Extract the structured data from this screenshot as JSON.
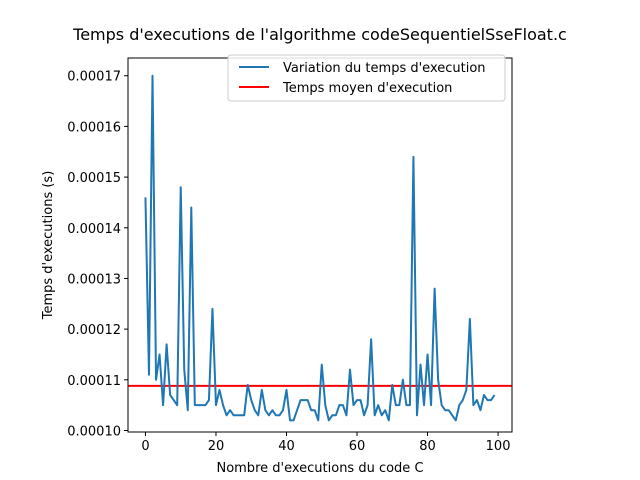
{
  "chart_data": {
    "type": "line",
    "title": "Temps d'executions de l'algorithme codeSequentielSseFloat.c",
    "xlabel": "Nombre d'executions du code C",
    "ylabel": "Temps d'executions (s)",
    "xlim": [
      -4.95,
      103.95
    ],
    "ylim": [
      9.97e-05,
      0.0001735
    ],
    "xticks": [
      0,
      20,
      40,
      60,
      80,
      100
    ],
    "xtick_labels": [
      "0",
      "20",
      "40",
      "60",
      "80",
      "100"
    ],
    "yticks": [
      0.0001,
      0.00011,
      0.00012,
      0.00013,
      0.00014,
      0.00015,
      0.00016,
      0.00017
    ],
    "ytick_labels": [
      "0.00010",
      "0.00011",
      "0.00012",
      "0.00013",
      "0.00014",
      "0.00015",
      "0.00016",
      "0.00017"
    ],
    "legend_position": "top-right",
    "series": [
      {
        "name": "Variation du temps d'execution",
        "color": "#1f77b4",
        "x": [
          0,
          1,
          2,
          3,
          4,
          5,
          6,
          7,
          8,
          9,
          10,
          11,
          12,
          13,
          14,
          15,
          16,
          17,
          18,
          19,
          20,
          21,
          22,
          23,
          24,
          25,
          26,
          27,
          28,
          29,
          30,
          31,
          32,
          33,
          34,
          35,
          36,
          37,
          38,
          39,
          40,
          41,
          42,
          43,
          44,
          45,
          46,
          47,
          48,
          49,
          50,
          51,
          52,
          53,
          54,
          55,
          56,
          57,
          58,
          59,
          60,
          61,
          62,
          63,
          64,
          65,
          66,
          67,
          68,
          69,
          70,
          71,
          72,
          73,
          74,
          75,
          76,
          77,
          78,
          79,
          80,
          81,
          82,
          83,
          84,
          85,
          86,
          87,
          88,
          89,
          90,
          91,
          92,
          93,
          94,
          95,
          96,
          97,
          98,
          99
        ],
        "values": [
          0.000146,
          0.000111,
          0.00017,
          0.00011,
          0.000115,
          0.000105,
          0.000117,
          0.000107,
          0.000106,
          0.000105,
          0.000148,
          0.000112,
          0.000104,
          0.000144,
          0.000105,
          0.000105,
          0.000105,
          0.000105,
          0.000106,
          0.000124,
          0.000105,
          0.000108,
          0.000105,
          0.000103,
          0.000104,
          0.000103,
          0.000103,
          0.000103,
          0.000103,
          0.000109,
          0.000106,
          0.000104,
          0.000103,
          0.000108,
          0.000104,
          0.000103,
          0.000104,
          0.000103,
          0.000103,
          0.000104,
          0.000108,
          0.000102,
          0.000102,
          0.000104,
          0.000106,
          0.000106,
          0.000106,
          0.000104,
          0.000104,
          0.000102,
          0.000113,
          0.000105,
          0.000102,
          0.000103,
          0.000103,
          0.000105,
          0.000105,
          0.000103,
          0.000112,
          0.000105,
          0.000106,
          0.000106,
          0.000103,
          0.000105,
          0.000118,
          0.000103,
          0.000105,
          0.000103,
          0.000104,
          0.000102,
          0.000109,
          0.000105,
          0.000105,
          0.00011,
          0.000105,
          0.000105,
          0.000154,
          0.000103,
          0.000113,
          0.000105,
          0.000115,
          0.000105,
          0.000128,
          0.00011,
          0.000105,
          0.000104,
          0.000104,
          0.000103,
          0.000102,
          0.000105,
          0.000106,
          0.000108,
          0.000122,
          0.000105,
          0.000106,
          0.000104,
          0.000107,
          0.000106,
          0.000106,
          0.000107
        ]
      },
      {
        "name": "Temps moyen d'execution",
        "color": "#ff0000",
        "type": "hline",
        "value": 0.0001088
      }
    ]
  }
}
